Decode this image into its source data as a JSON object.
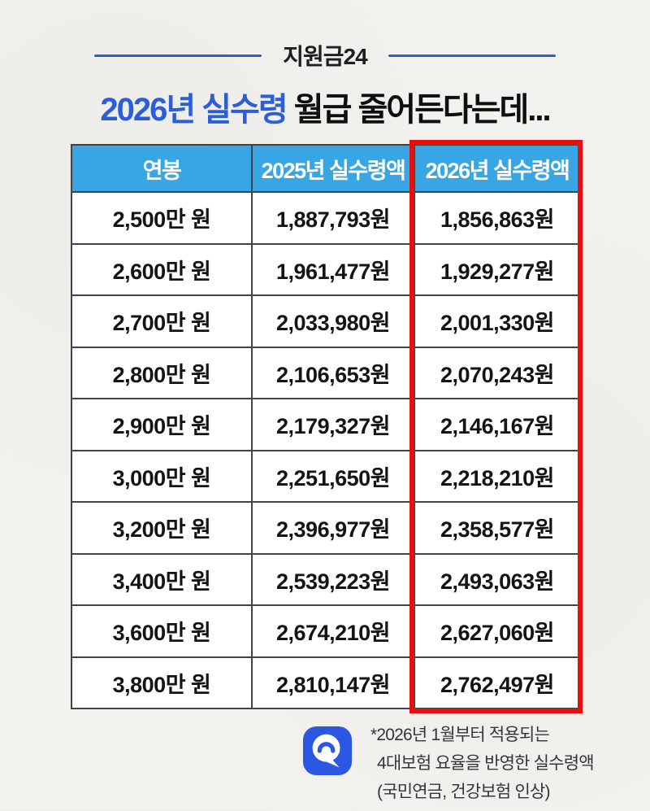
{
  "page": {
    "brand": "지원금24",
    "title_highlight": "2026년 실수령",
    "title_rest": " 월급 줄어든다는데..."
  },
  "table": {
    "headers": [
      "연봉",
      "2025년 실수령액",
      "2026년 실수령액"
    ],
    "rows": [
      [
        "2,500만 원",
        "1,887,793원",
        "1,856,863원"
      ],
      [
        "2,600만 원",
        "1,961,477원",
        "1,929,277원"
      ],
      [
        "2,700만 원",
        "2,033,980원",
        "2,001,330원"
      ],
      [
        "2,800만 원",
        "2,106,653원",
        "2,070,243원"
      ],
      [
        "2,900만 원",
        "2,179,327원",
        "2,146,167원"
      ],
      [
        "3,000만 원",
        "2,251,650원",
        "2,218,210원"
      ],
      [
        "3,200만 원",
        "2,396,977원",
        "2,358,577원"
      ],
      [
        "3,400만 원",
        "2,539,223원",
        "2,493,063원"
      ],
      [
        "3,600만 원",
        "2,674,210원",
        "2,627,060원"
      ],
      [
        "3,800만 원",
        "2,810,147원",
        "2,762,497원"
      ]
    ],
    "highlighted_column": "2026년 실수령액"
  },
  "footnote": {
    "lines": [
      "*2026년 1월부터 적용되는",
      "4대보험 요율을 반영한 실수령액",
      "(국민연금, 건강보험 인상)"
    ],
    "icon": "speech-bubble-icon"
  },
  "colors": {
    "accent_blue": "#2b5fd9",
    "header_bg": "#38a5e4",
    "highlight_red": "#e8100c",
    "icon_blue": "#2b57e3"
  }
}
